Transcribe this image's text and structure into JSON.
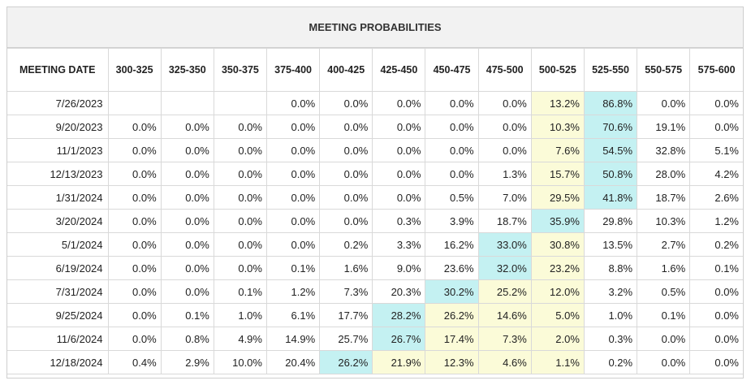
{
  "title": "MEETING PROBABILITIES",
  "header_date": "MEETING DATE",
  "ranges": [
    "300-325",
    "325-350",
    "350-375",
    "375-400",
    "400-425",
    "425-450",
    "450-475",
    "475-500",
    "500-525",
    "525-550",
    "550-575",
    "575-600"
  ],
  "colors": {
    "yellow": "#fbfbd8",
    "cyan": "#c4f1f2"
  },
  "rows": [
    {
      "date": "7/26/2023",
      "values": [
        "",
        "",
        "",
        "0.0%",
        "0.0%",
        "0.0%",
        "0.0%",
        "0.0%",
        "13.2%",
        "86.8%",
        "0.0%",
        "0.0%"
      ],
      "cyan": 9,
      "yellow": [
        8
      ]
    },
    {
      "date": "9/20/2023",
      "values": [
        "0.0%",
        "0.0%",
        "0.0%",
        "0.0%",
        "0.0%",
        "0.0%",
        "0.0%",
        "0.0%",
        "10.3%",
        "70.6%",
        "19.1%",
        "0.0%"
      ],
      "cyan": 9,
      "yellow": [
        8
      ]
    },
    {
      "date": "11/1/2023",
      "values": [
        "0.0%",
        "0.0%",
        "0.0%",
        "0.0%",
        "0.0%",
        "0.0%",
        "0.0%",
        "0.0%",
        "7.6%",
        "54.5%",
        "32.8%",
        "5.1%"
      ],
      "cyan": 9,
      "yellow": [
        8
      ]
    },
    {
      "date": "12/13/2023",
      "values": [
        "0.0%",
        "0.0%",
        "0.0%",
        "0.0%",
        "0.0%",
        "0.0%",
        "0.0%",
        "1.3%",
        "15.7%",
        "50.8%",
        "28.0%",
        "4.2%"
      ],
      "cyan": 9,
      "yellow": [
        8
      ]
    },
    {
      "date": "1/31/2024",
      "values": [
        "0.0%",
        "0.0%",
        "0.0%",
        "0.0%",
        "0.0%",
        "0.0%",
        "0.5%",
        "7.0%",
        "29.5%",
        "41.8%",
        "18.7%",
        "2.6%"
      ],
      "cyan": 9,
      "yellow": [
        8
      ]
    },
    {
      "date": "3/20/2024",
      "values": [
        "0.0%",
        "0.0%",
        "0.0%",
        "0.0%",
        "0.0%",
        "0.3%",
        "3.9%",
        "18.7%",
        "35.9%",
        "29.8%",
        "10.3%",
        "1.2%"
      ],
      "cyan": 8,
      "yellow": []
    },
    {
      "date": "5/1/2024",
      "values": [
        "0.0%",
        "0.0%",
        "0.0%",
        "0.0%",
        "0.2%",
        "3.3%",
        "16.2%",
        "33.0%",
        "30.8%",
        "13.5%",
        "2.7%",
        "0.2%"
      ],
      "cyan": 7,
      "yellow": [
        8
      ]
    },
    {
      "date": "6/19/2024",
      "values": [
        "0.0%",
        "0.0%",
        "0.0%",
        "0.1%",
        "1.6%",
        "9.0%",
        "23.6%",
        "32.0%",
        "23.2%",
        "8.8%",
        "1.6%",
        "0.1%"
      ],
      "cyan": 7,
      "yellow": [
        8
      ]
    },
    {
      "date": "7/31/2024",
      "values": [
        "0.0%",
        "0.0%",
        "0.1%",
        "1.2%",
        "7.3%",
        "20.3%",
        "30.2%",
        "25.2%",
        "12.0%",
        "3.2%",
        "0.5%",
        "0.0%"
      ],
      "cyan": 6,
      "yellow": [
        7,
        8
      ]
    },
    {
      "date": "9/25/2024",
      "values": [
        "0.0%",
        "0.1%",
        "1.0%",
        "6.1%",
        "17.7%",
        "28.2%",
        "26.2%",
        "14.6%",
        "5.0%",
        "1.0%",
        "0.1%",
        "0.0%"
      ],
      "cyan": 5,
      "yellow": [
        6,
        7,
        8
      ]
    },
    {
      "date": "11/6/2024",
      "values": [
        "0.0%",
        "0.8%",
        "4.9%",
        "14.9%",
        "25.7%",
        "26.7%",
        "17.4%",
        "7.3%",
        "2.0%",
        "0.3%",
        "0.0%",
        "0.0%"
      ],
      "cyan": 5,
      "yellow": [
        6,
        7,
        8
      ]
    },
    {
      "date": "12/18/2024",
      "values": [
        "0.4%",
        "2.9%",
        "10.0%",
        "20.4%",
        "26.2%",
        "21.9%",
        "12.3%",
        "4.6%",
        "1.1%",
        "0.2%",
        "0.0%",
        "0.0%"
      ],
      "cyan": 4,
      "yellow": [
        5,
        6,
        7,
        8
      ]
    }
  ]
}
